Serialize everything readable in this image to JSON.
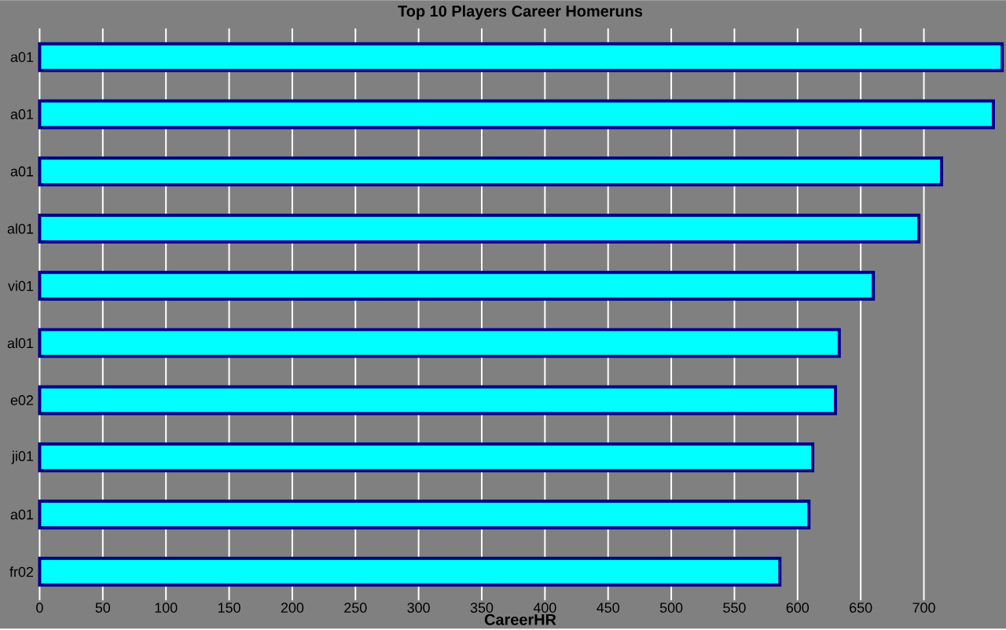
{
  "chart_data": {
    "type": "bar",
    "orientation": "horizontal",
    "title": "Top 10 Players Career Homeruns",
    "xlabel": "CareerHR",
    "categories": [
      "a01",
      "a01",
      "a01",
      "al01",
      "vi01",
      "al01",
      "e02",
      "ji01",
      "a01",
      "fr02"
    ],
    "values": [
      762,
      755,
      714,
      696,
      660,
      633,
      630,
      612,
      609,
      586
    ],
    "color": "#00ffff",
    "xlim": [
      -4,
      765
    ],
    "xticks": [
      0,
      50,
      100,
      150,
      200,
      250,
      300,
      350,
      400,
      450,
      500,
      550,
      600,
      650,
      700
    ],
    "grid": "x"
  }
}
